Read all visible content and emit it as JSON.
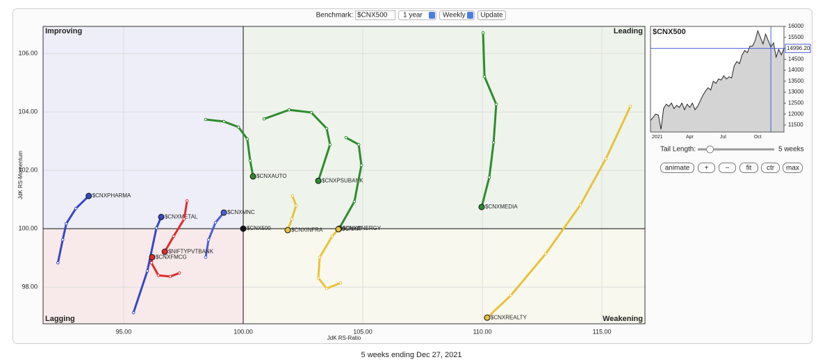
{
  "chart_data": [
    {
      "type": "rrg",
      "x_label": "JdK RS-Ratio",
      "y_label": "JdK RS-Momentum",
      "xlim": [
        91.63,
        116.8
      ],
      "ylim": [
        96.74,
        106.93
      ],
      "xticks": [
        {
          "value": 95,
          "label": "95.00"
        },
        {
          "value": 100,
          "label": "100.00"
        },
        {
          "value": 105,
          "label": "105.00"
        },
        {
          "value": 110,
          "label": "110.00"
        },
        {
          "value": 115,
          "label": "115.00"
        }
      ],
      "yticks": [
        {
          "value": 98,
          "label": "98.00"
        },
        {
          "value": 100,
          "label": "100.00"
        },
        {
          "value": 102,
          "label": "102.00"
        },
        {
          "value": 104,
          "label": "104.00"
        },
        {
          "value": 106,
          "label": "106.00"
        }
      ],
      "grid": true,
      "center": {
        "x": 100,
        "y": 100
      },
      "quadrant_labels": {
        "improving": "Improving",
        "leading": "Leading",
        "lagging": "Lagging",
        "weakening": "Weakening"
      },
      "series": [
        {
          "name": "$CNXPHARMA",
          "color": "#3547c8",
          "x": [
            92.25,
            92.45,
            92.6,
            93.0,
            93.54
          ],
          "y": [
            98.83,
            99.62,
            100.17,
            100.69,
            101.12
          ]
        },
        {
          "name": "$CNXMETAL",
          "color": "#3547c8",
          "x": [
            95.41,
            95.99,
            96.37,
            96.57
          ],
          "y": [
            97.12,
            98.55,
            100.02,
            100.4
          ]
        },
        {
          "name": "$CNXMNC",
          "color": "#4a5fd8",
          "x": [
            98.43,
            98.55,
            98.84,
            99.19
          ],
          "y": [
            99.02,
            99.62,
            100.21,
            100.55
          ]
        },
        {
          "name": "$CNX500",
          "color": "#111111",
          "x": [
            100
          ],
          "y": [
            100
          ]
        },
        {
          "name": "$CNXFMCG",
          "color": "#e02b2b",
          "x": [
            97.33,
            96.95,
            96.45,
            96.16,
            96.19
          ],
          "y": [
            98.48,
            98.36,
            98.4,
            98.83,
            99.02
          ]
        },
        {
          "name": "$NIFTYPVTBANK",
          "color": "#e02b2b",
          "x": [
            97.65,
            97.53,
            97.09,
            96.72
          ],
          "y": [
            100.95,
            100.33,
            99.74,
            99.21
          ]
        },
        {
          "name": "$CNXAUTO",
          "color": "#2e8b2e",
          "x": [
            98.43,
            99.19,
            99.8,
            100.17,
            100.29,
            100.41
          ],
          "y": [
            103.74,
            103.67,
            103.48,
            103.07,
            102.33,
            101.79
          ]
        },
        {
          "name": "$CNXPSUBANK",
          "color": "#2e8b2e",
          "x": [
            100.87,
            101.92,
            102.85,
            103.49,
            103.63,
            103.14
          ],
          "y": [
            103.76,
            104.07,
            103.98,
            103.43,
            102.88,
            101.64
          ]
        },
        {
          "name": "$CNXENERGY",
          "color": "#2e8b2e",
          "x": [
            104.3,
            104.83,
            104.94,
            104.65,
            104.01
          ],
          "y": [
            103.12,
            102.88,
            102.17,
            100.93,
            100.0
          ]
        },
        {
          "name": "$CNXIT",
          "color": "#e8c23a",
          "x": [
            104.07,
            103.49,
            103.14,
            103.2,
            103.72,
            103.98
          ],
          "y": [
            98.14,
            97.95,
            98.31,
            99.02,
            99.74,
            99.98
          ]
        },
        {
          "name": "$CNXINFRA",
          "color": "#e8c23a",
          "x": [
            102.06,
            102.21,
            102.03,
            101.86
          ],
          "y": [
            101.12,
            100.79,
            100.33,
            99.95
          ]
        },
        {
          "name": "$CNXMEDIA",
          "color": "#2e8b2e",
          "x": [
            110.03,
            110.09,
            110.58,
            110.47,
            110.29,
            109.97
          ],
          "y": [
            106.71,
            105.21,
            104.26,
            102.95,
            101.76,
            100.74
          ]
        },
        {
          "name": "$CNXREALTY",
          "color": "#e8c23a",
          "x": [
            116.19,
            115.17,
            114.1,
            112.65,
            111.19,
            110.2
          ],
          "y": [
            104.19,
            102.4,
            100.81,
            99.14,
            97.71,
            96.95
          ]
        }
      ]
    },
    {
      "type": "line",
      "title": "$CNX500",
      "categories": [
        "2021",
        null,
        null,
        null,
        null,
        null,
        null,
        null,
        null,
        null,
        null,
        null,
        null,
        "Apr",
        null,
        null,
        null,
        null,
        null,
        null,
        null,
        null,
        null,
        null,
        null,
        null,
        "Jul",
        null,
        null,
        null,
        null,
        null,
        null,
        null,
        null,
        null,
        null,
        null,
        null,
        "Oct",
        null,
        null,
        null,
        null,
        null,
        null,
        null,
        null,
        null,
        null,
        null,
        null
      ],
      "values": [
        11700,
        11850,
        12000,
        11950,
        11300,
        12250,
        12450,
        12350,
        12500,
        12250,
        12400,
        12300,
        12500,
        12200,
        12450,
        12300,
        12500,
        12200,
        12350,
        12600,
        12850,
        13050,
        13200,
        13100,
        13500,
        13400,
        13600,
        13550,
        13750,
        13600,
        13700,
        13650,
        14200,
        14400,
        14300,
        14700,
        14900,
        14800,
        15100,
        15100,
        15350,
        15800,
        15500,
        15200,
        15650,
        15350,
        15050,
        15250,
        14600,
        14950,
        14700,
        14996.2
      ],
      "value_labels": [
        null,
        null,
        null,
        null,
        null,
        null,
        null,
        null,
        null,
        null,
        null,
        null,
        null,
        null,
        null,
        null,
        null,
        null,
        null,
        null,
        null,
        null,
        null,
        null,
        null,
        null,
        null,
        null,
        null,
        null,
        null,
        null,
        null,
        null,
        null,
        null,
        null,
        null,
        null,
        null,
        null,
        null,
        null,
        null,
        null,
        null,
        null,
        null,
        null,
        null,
        null,
        "14996.20"
      ],
      "color": "#222222",
      "ylim": [
        11180,
        16000
      ],
      "yticks": [
        11500,
        12000,
        12500,
        13000,
        13500,
        14000,
        14500,
        15000,
        15500,
        16000
      ]
    }
  ],
  "controls": {
    "benchmark_label": "Benchmark:",
    "benchmark": "$CNX500",
    "period": "1 year",
    "frequency": "Weekly",
    "update": "Update",
    "tail_length_label": "Tail Length:",
    "tail_length": {
      "value": 5,
      "label": "5 weeks"
    },
    "buttons": [
      "animate",
      "+",
      "−",
      "fit",
      "ctr",
      "max"
    ]
  },
  "footer": "5 weeks ending Dec 27, 2021"
}
